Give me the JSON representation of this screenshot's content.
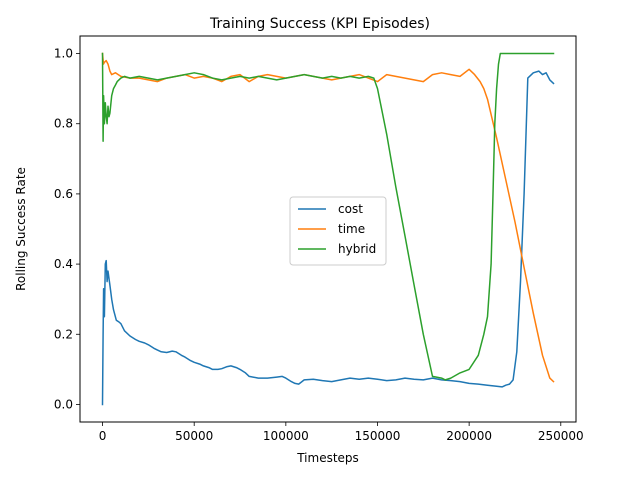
{
  "chart_data": {
    "type": "line",
    "title": "Training Success (KPI Episodes)",
    "xlabel": "Timesteps",
    "ylabel": "Rolling Success Rate",
    "xlim": [
      -12300,
      258300
    ],
    "ylim": [
      -0.05,
      1.05
    ],
    "xticks": [
      0,
      50000,
      100000,
      150000,
      200000,
      250000
    ],
    "xtick_labels": [
      "0",
      "50000",
      "100000",
      "150000",
      "200000",
      "250000"
    ],
    "yticks": [
      0.0,
      0.2,
      0.4,
      0.6,
      0.8,
      1.0
    ],
    "ytick_labels": [
      "0.0",
      "0.2",
      "0.4",
      "0.6",
      "0.8",
      "1.0"
    ],
    "grid": false,
    "legend_position": "center",
    "series": [
      {
        "name": "cost",
        "color": "#1f77b4",
        "x": [
          0,
          300,
          600,
          1000,
          1500,
          2000,
          2500,
          3000,
          4000,
          5000,
          6000,
          7500,
          9000,
          10000,
          12000,
          15000,
          18000,
          20000,
          23000,
          25000,
          28000,
          30000,
          32000,
          35000,
          38000,
          40000,
          43000,
          45000,
          48000,
          50000,
          53000,
          55000,
          58000,
          60000,
          63000,
          65000,
          68000,
          70000,
          73000,
          75000,
          78000,
          80000,
          85000,
          90000,
          95000,
          98000,
          100000,
          103000,
          105000,
          107000,
          110000,
          115000,
          120000,
          125000,
          130000,
          135000,
          140000,
          145000,
          150000,
          155000,
          160000,
          165000,
          170000,
          175000,
          180000,
          185000,
          190000,
          195000,
          200000,
          205000,
          210000,
          215000,
          218000,
          220000,
          222000,
          224000,
          226000,
          228000,
          230000,
          232000,
          235000,
          238000,
          240000,
          242000,
          244000,
          246000
        ],
        "y": [
          0.0,
          0.2,
          0.33,
          0.25,
          0.4,
          0.41,
          0.35,
          0.38,
          0.34,
          0.3,
          0.27,
          0.24,
          0.235,
          0.23,
          0.21,
          0.195,
          0.185,
          0.18,
          0.175,
          0.17,
          0.16,
          0.155,
          0.15,
          0.148,
          0.152,
          0.15,
          0.14,
          0.135,
          0.125,
          0.12,
          0.115,
          0.11,
          0.105,
          0.1,
          0.1,
          0.102,
          0.108,
          0.11,
          0.105,
          0.1,
          0.09,
          0.08,
          0.075,
          0.075,
          0.078,
          0.08,
          0.075,
          0.065,
          0.06,
          0.058,
          0.07,
          0.072,
          0.068,
          0.065,
          0.07,
          0.075,
          0.072,
          0.075,
          0.072,
          0.068,
          0.07,
          0.075,
          0.072,
          0.07,
          0.075,
          0.07,
          0.068,
          0.065,
          0.06,
          0.058,
          0.055,
          0.052,
          0.05,
          0.055,
          0.058,
          0.07,
          0.15,
          0.35,
          0.6,
          0.93,
          0.945,
          0.95,
          0.94,
          0.945,
          0.925,
          0.915
        ]
      },
      {
        "name": "time",
        "color": "#ff7f0e",
        "x": [
          0,
          500,
          1000,
          2000,
          3000,
          4000,
          5000,
          7000,
          10000,
          15000,
          20000,
          25000,
          30000,
          35000,
          40000,
          45000,
          50000,
          55000,
          60000,
          65000,
          70000,
          75000,
          80000,
          85000,
          90000,
          95000,
          100000,
          105000,
          110000,
          115000,
          120000,
          125000,
          130000,
          135000,
          140000,
          145000,
          150000,
          155000,
          160000,
          165000,
          170000,
          175000,
          180000,
          185000,
          190000,
          195000,
          200000,
          203000,
          206000,
          208000,
          210000,
          215000,
          220000,
          225000,
          230000,
          235000,
          240000,
          244000,
          246000
        ],
        "y": [
          1.0,
          0.97,
          0.975,
          0.98,
          0.97,
          0.95,
          0.94,
          0.945,
          0.935,
          0.93,
          0.93,
          0.925,
          0.92,
          0.93,
          0.935,
          0.94,
          0.93,
          0.935,
          0.93,
          0.92,
          0.935,
          0.94,
          0.92,
          0.935,
          0.94,
          0.935,
          0.93,
          0.935,
          0.94,
          0.935,
          0.93,
          0.925,
          0.93,
          0.935,
          0.94,
          0.93,
          0.92,
          0.94,
          0.935,
          0.93,
          0.925,
          0.92,
          0.94,
          0.945,
          0.94,
          0.935,
          0.955,
          0.94,
          0.92,
          0.9,
          0.87,
          0.76,
          0.64,
          0.52,
          0.39,
          0.26,
          0.14,
          0.075,
          0.065
        ]
      },
      {
        "name": "hybrid",
        "color": "#2ca02c",
        "x": [
          0,
          300,
          600,
          1000,
          1500,
          2000,
          2500,
          3000,
          3500,
          4000,
          5000,
          6000,
          7000,
          8000,
          10000,
          12000,
          15000,
          20000,
          25000,
          30000,
          35000,
          40000,
          45000,
          50000,
          55000,
          60000,
          65000,
          70000,
          75000,
          80000,
          85000,
          90000,
          95000,
          100000,
          105000,
          110000,
          115000,
          120000,
          125000,
          130000,
          135000,
          140000,
          145000,
          148000,
          150000,
          155000,
          160000,
          165000,
          170000,
          175000,
          180000,
          185000,
          187000,
          190000,
          195000,
          200000,
          205000,
          208000,
          210000,
          212000,
          213000,
          214000,
          215000,
          216000,
          217000,
          218000,
          220000,
          225000,
          230000,
          235000,
          240000,
          246000
        ],
        "y": [
          1.0,
          0.75,
          0.88,
          0.8,
          0.86,
          0.82,
          0.8,
          0.85,
          0.82,
          0.83,
          0.88,
          0.9,
          0.91,
          0.92,
          0.93,
          0.935,
          0.93,
          0.935,
          0.93,
          0.925,
          0.93,
          0.935,
          0.94,
          0.945,
          0.94,
          0.93,
          0.925,
          0.93,
          0.935,
          0.93,
          0.935,
          0.93,
          0.925,
          0.93,
          0.935,
          0.94,
          0.935,
          0.93,
          0.935,
          0.93,
          0.935,
          0.93,
          0.935,
          0.93,
          0.9,
          0.77,
          0.62,
          0.48,
          0.34,
          0.2,
          0.08,
          0.075,
          0.07,
          0.075,
          0.09,
          0.1,
          0.14,
          0.2,
          0.25,
          0.4,
          0.6,
          0.8,
          0.9,
          0.97,
          1.0,
          1.0,
          1.0,
          1.0,
          1.0,
          1.0,
          1.0,
          1.0
        ]
      }
    ]
  }
}
